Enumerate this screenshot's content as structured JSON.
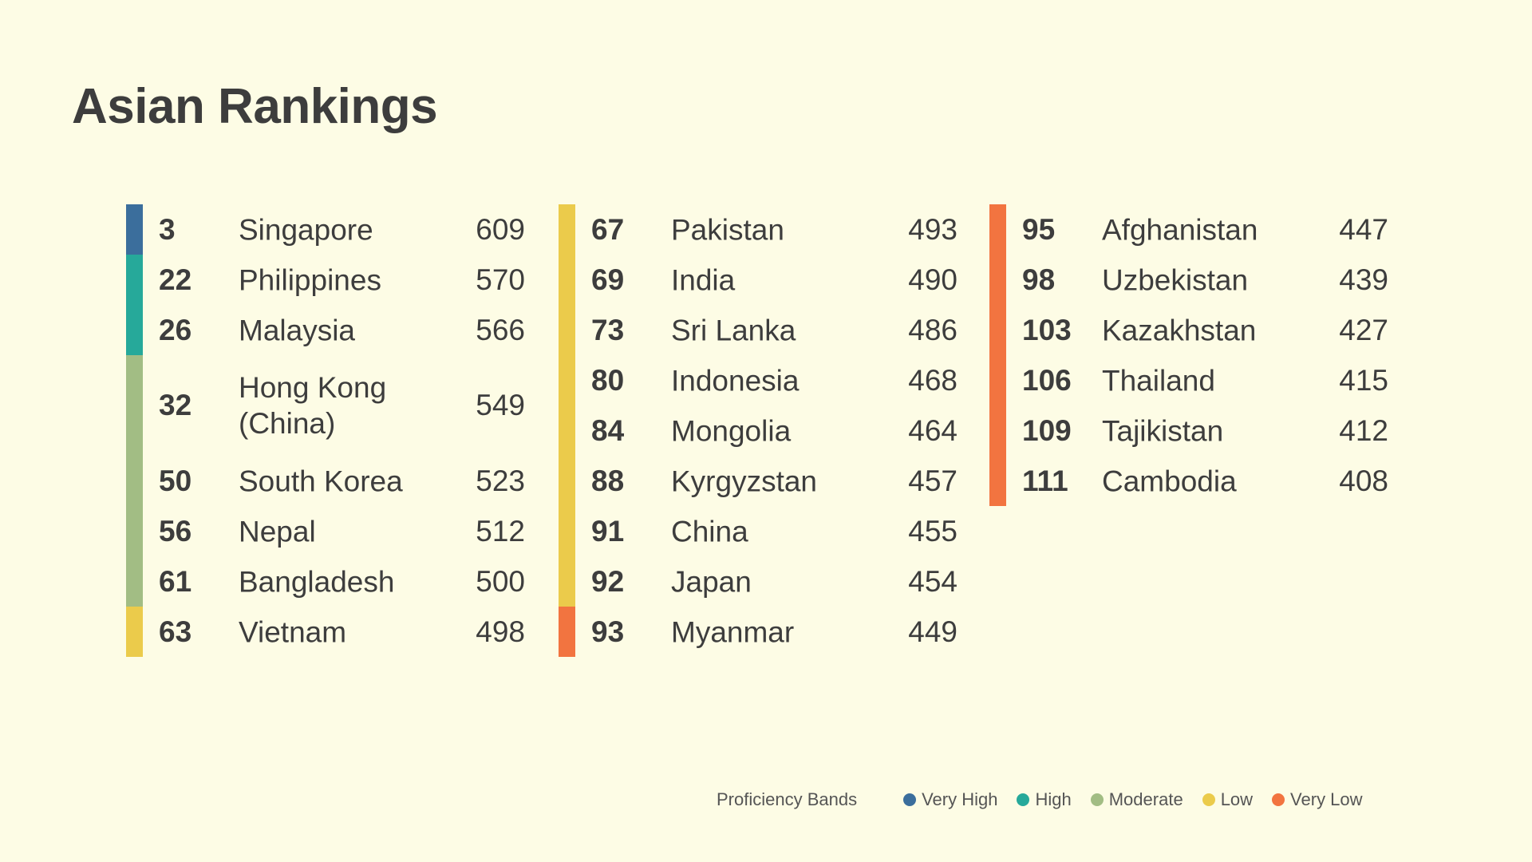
{
  "title": "Asian Rankings",
  "colors": {
    "very_high": "#3b6e9c",
    "high": "#26a99a",
    "moderate": "#a2bd84",
    "low": "#ebcb4b",
    "very_low": "#f27440"
  },
  "chart_data": {
    "type": "table",
    "title": "Asian Rankings",
    "columns": [
      "rank",
      "country",
      "score",
      "band"
    ],
    "rows": [
      {
        "rank": "3",
        "country": "Singapore",
        "score": "609",
        "band": "very_high"
      },
      {
        "rank": "22",
        "country": "Philippines",
        "score": "570",
        "band": "high"
      },
      {
        "rank": "26",
        "country": "Malaysia",
        "score": "566",
        "band": "high"
      },
      {
        "rank": "32",
        "country": "Hong Kong (China)",
        "score": "549",
        "band": "moderate"
      },
      {
        "rank": "50",
        "country": "South Korea",
        "score": "523",
        "band": "moderate"
      },
      {
        "rank": "56",
        "country": "Nepal",
        "score": "512",
        "band": "moderate"
      },
      {
        "rank": "61",
        "country": "Bangladesh",
        "score": "500",
        "band": "moderate"
      },
      {
        "rank": "63",
        "country": "Vietnam",
        "score": "498",
        "band": "low"
      },
      {
        "rank": "67",
        "country": "Pakistan",
        "score": "493",
        "band": "low"
      },
      {
        "rank": "69",
        "country": "India",
        "score": "490",
        "band": "low"
      },
      {
        "rank": "73",
        "country": "Sri Lanka",
        "score": "486",
        "band": "low"
      },
      {
        "rank": "80",
        "country": "Indonesia",
        "score": "468",
        "band": "low"
      },
      {
        "rank": "84",
        "country": "Mongolia",
        "score": "464",
        "band": "low"
      },
      {
        "rank": "88",
        "country": "Kyrgyzstan",
        "score": "457",
        "band": "low"
      },
      {
        "rank": "91",
        "country": "China",
        "score": "455",
        "band": "low"
      },
      {
        "rank": "92",
        "country": "Japan",
        "score": "454",
        "band": "low"
      },
      {
        "rank": "93",
        "country": "Myanmar",
        "score": "449",
        "band": "very_low"
      },
      {
        "rank": "95",
        "country": "Afghanistan",
        "score": "447",
        "band": "very_low"
      },
      {
        "rank": "98",
        "country": "Uzbekistan",
        "score": "439",
        "band": "very_low"
      },
      {
        "rank": "103",
        "country": "Kazakhstan",
        "score": "427",
        "band": "very_low"
      },
      {
        "rank": "106",
        "country": "Thailand",
        "score": "415",
        "band": "very_low"
      },
      {
        "rank": "109",
        "country": "Tajikistan",
        "score": "412",
        "band": "very_low"
      },
      {
        "rank": "111",
        "country": "Cambodia",
        "score": "408",
        "band": "very_low"
      }
    ]
  },
  "legend": {
    "title": "Proficiency Bands",
    "items": [
      {
        "key": "very_high",
        "label": "Very High",
        "color": "#3b6e9c"
      },
      {
        "key": "high",
        "label": "High",
        "color": "#26a99a"
      },
      {
        "key": "moderate",
        "label": "Moderate",
        "color": "#a2bd84"
      },
      {
        "key": "low",
        "label": "Low",
        "color": "#ebcb4b"
      },
      {
        "key": "very_low",
        "label": "Very Low",
        "color": "#f27440"
      }
    ]
  }
}
